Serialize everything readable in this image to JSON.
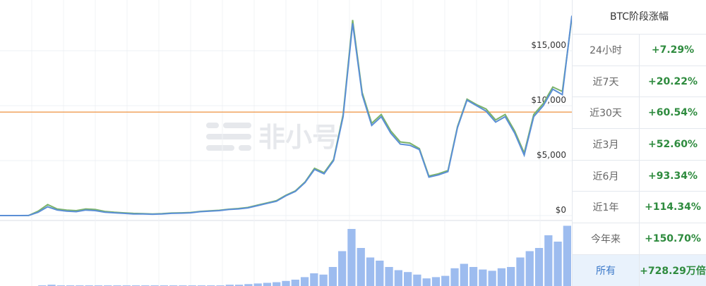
{
  "chart_data": [
    {
      "type": "line",
      "categories": [
        null,
        null,
        null,
        null,
        null,
        null,
        null,
        null,
        null,
        null,
        null,
        null,
        null,
        null,
        null,
        null,
        null,
        null,
        null,
        null,
        null,
        null,
        null,
        null,
        null,
        null,
        null,
        null,
        null,
        null,
        null,
        null,
        null,
        null,
        null,
        null,
        null,
        null,
        null,
        null,
        null,
        null,
        null,
        null,
        null,
        null,
        null,
        null,
        null,
        null,
        null,
        null,
        null,
        null,
        null,
        null,
        null,
        null,
        null,
        null,
        null
      ],
      "series": [
        {
          "color": "#7bb36a",
          "values": [
            0,
            0,
            0,
            5,
            400,
            1000,
            600,
            500,
            450,
            600,
            550,
            380,
            300,
            250,
            200,
            180,
            150,
            180,
            230,
            250,
            280,
            380,
            430,
            480,
            580,
            640,
            740,
            950,
            1150,
            1350,
            1850,
            2250,
            3050,
            4300,
            3900,
            5100,
            9200,
            17800,
            11200,
            8400,
            9200,
            7700,
            6700,
            6600,
            6100,
            3600,
            3800,
            4100,
            8100,
            10600,
            10100,
            9700,
            8700,
            9200,
            7700,
            5700,
            9200,
            10200,
            11700,
            11300,
            18000
          ]
        },
        {
          "color": "#5b8fd6",
          "values": [
            0,
            0,
            0,
            5,
            300,
            800,
            500,
            400,
            350,
            500,
            450,
            300,
            250,
            200,
            150,
            150,
            120,
            150,
            200,
            220,
            250,
            350,
            400,
            450,
            550,
            600,
            700,
            900,
            1100,
            1300,
            1800,
            2200,
            3000,
            4200,
            3800,
            5000,
            9000,
            17500,
            11000,
            8200,
            9000,
            7500,
            6500,
            6400,
            6000,
            3500,
            3700,
            4000,
            8000,
            10500,
            10000,
            9500,
            8500,
            9000,
            7500,
            5500,
            9000,
            10000,
            11500,
            11000,
            18200
          ]
        }
      ],
      "ylim": [
        0,
        19300
      ],
      "yticks": [
        {
          "value": 0,
          "label": "$0"
        },
        {
          "value": 5000,
          "label": "$5,000"
        },
        {
          "value": 10000,
          "label": "$10,000"
        },
        {
          "value": 15000,
          "label": "$15,000"
        }
      ],
      "grid": true,
      "ref_line": {
        "value": 9420,
        "color": "#f0a35e"
      }
    },
    {
      "type": "bar",
      "color": "#9dbcef",
      "values": [
        0,
        0,
        0,
        0,
        1,
        2,
        1,
        1,
        1,
        1,
        1,
        1,
        1,
        1,
        1,
        1,
        1,
        1,
        1,
        1,
        1,
        1,
        1,
        1,
        2,
        2,
        3,
        4,
        5,
        6,
        8,
        10,
        14,
        20,
        18,
        30,
        55,
        90,
        60,
        45,
        40,
        30,
        25,
        22,
        18,
        12,
        14,
        16,
        28,
        35,
        30,
        26,
        24,
        28,
        30,
        45,
        55,
        60,
        80,
        70,
        95
      ],
      "ylim": [
        0,
        100
      ]
    }
  ],
  "watermark": "非小号",
  "table": {
    "header": "BTC阶段涨幅",
    "rows": [
      [
        "24小时",
        "+7.29%"
      ],
      [
        "近7天",
        "+20.22%"
      ],
      [
        "近30天",
        "+60.54%"
      ],
      [
        "近3月",
        "+52.60%"
      ],
      [
        "近6月",
        "+93.34%"
      ],
      [
        "近1年",
        "+114.34%"
      ],
      [
        "今年来",
        "+150.70%"
      ],
      [
        "所有",
        "+728.29万倍"
      ]
    ]
  }
}
